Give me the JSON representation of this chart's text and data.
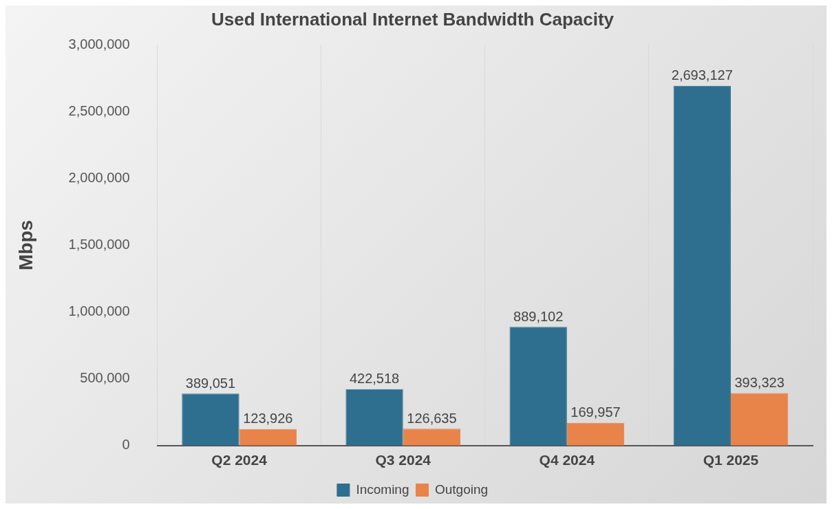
{
  "chart_data": {
    "type": "bar",
    "title": "Used International Internet Bandwidth Capacity",
    "ylabel": "Mbps",
    "categories": [
      "Q2 2024",
      "Q3 2024",
      "Q4 2024",
      "Q1 2025"
    ],
    "series": [
      {
        "name": "Incoming",
        "color": "#2e6e8e",
        "values": [
          389051,
          422518,
          889102,
          2693127
        ],
        "value_labels": [
          "389,051",
          "422,518",
          "889,102",
          "2,693,127"
        ]
      },
      {
        "name": "Outgoing",
        "color": "#e8834a",
        "values": [
          123926,
          126635,
          169957,
          393323
        ],
        "value_labels": [
          "123,926",
          "126,635",
          "169,957",
          "393,323"
        ]
      }
    ],
    "ylim": [
      0,
      3000000
    ],
    "yticks": [
      0,
      {
        "value": 500000,
        "label": "500,000"
      },
      {
        "value": 1000000,
        "label": "1,000,000"
      },
      {
        "value": 1500000,
        "label": "1,500,000"
      },
      {
        "value": 2000000,
        "label": "2,000,000"
      },
      {
        "value": 2500000,
        "label": "2,500,000"
      },
      {
        "value": 3000000,
        "label": "3,000,000"
      }
    ],
    "grid": "x",
    "legend": "bottom"
  }
}
